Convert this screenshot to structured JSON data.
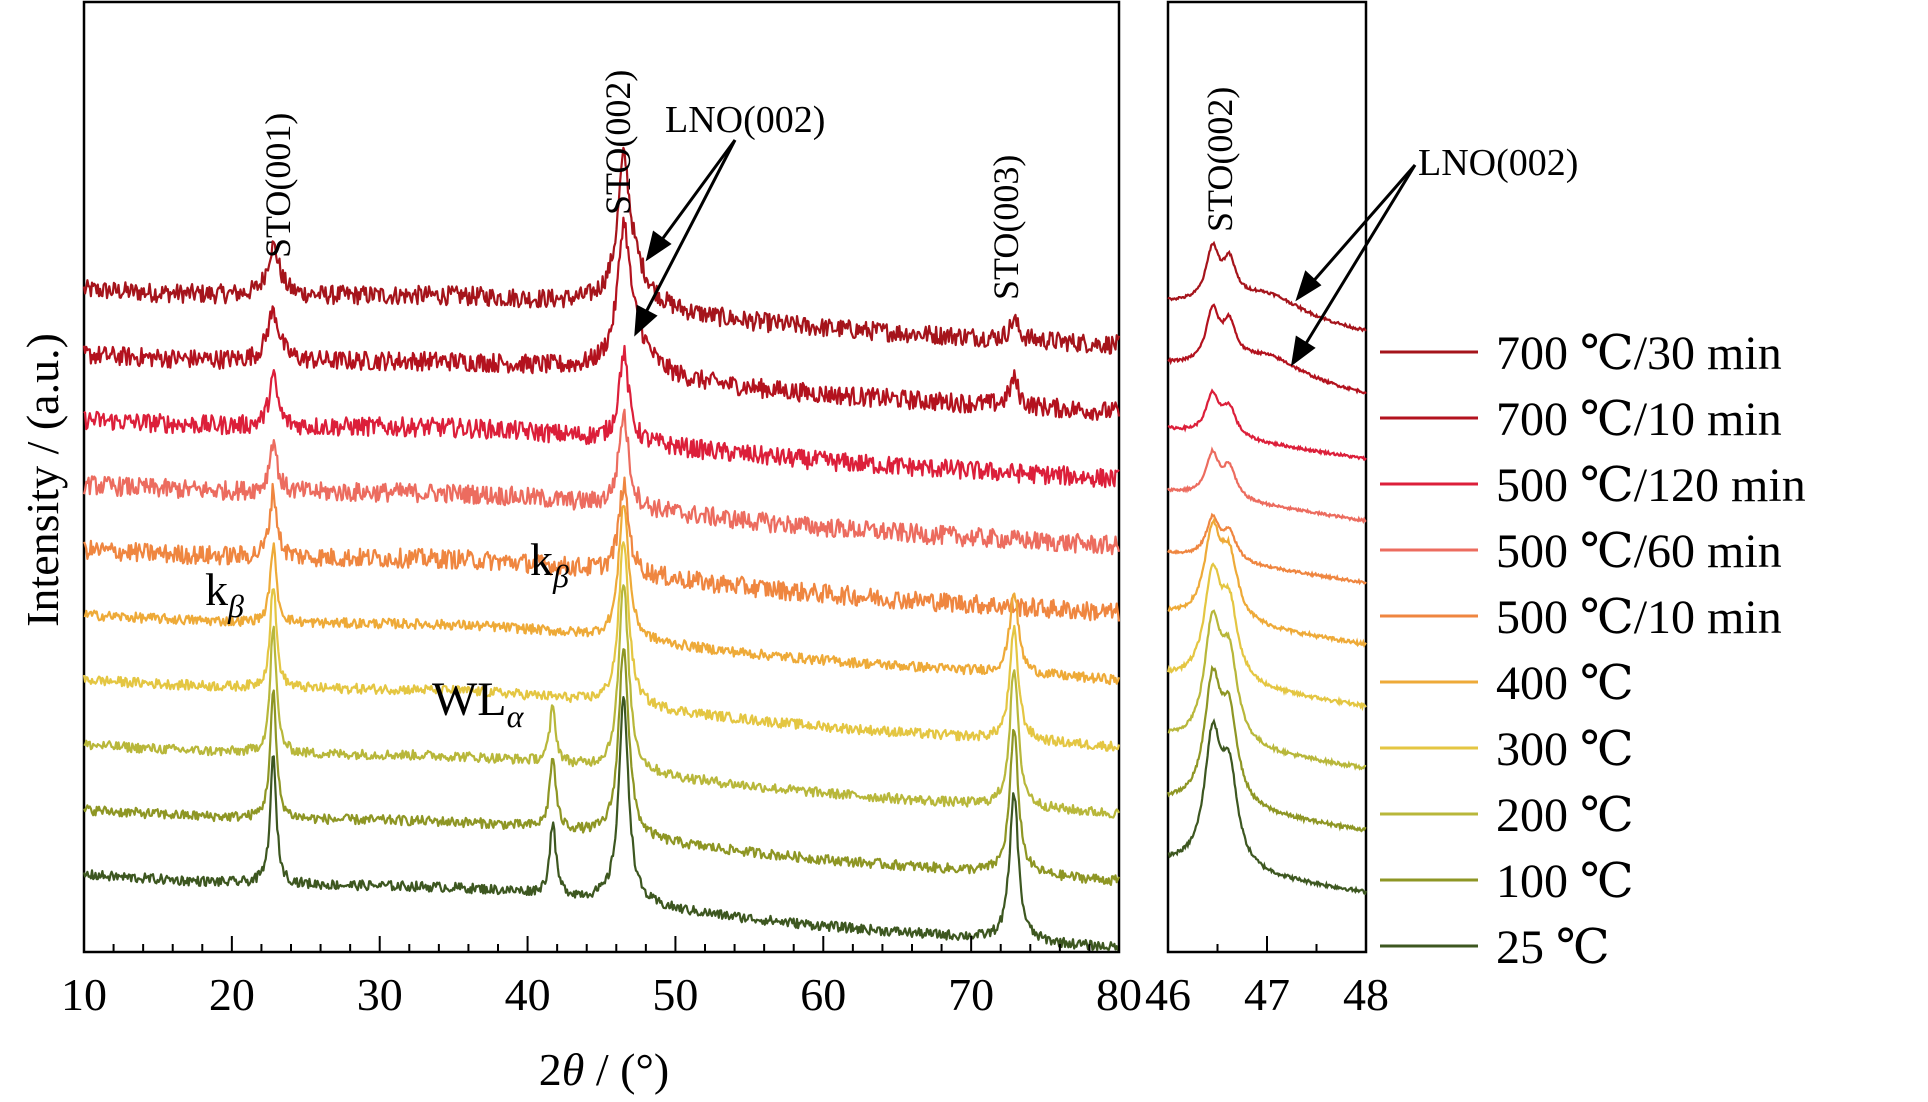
{
  "chart_data": [
    {
      "type": "line",
      "panel": "main",
      "xlabel_parts": {
        "prefix": "2",
        "symbol": "θ",
        "suffix": " / (°)"
      },
      "ylabel": "Intensity / (a.u.)",
      "xlim": [
        10,
        80
      ],
      "xticks": [
        10,
        20,
        30,
        40,
        50,
        60,
        70,
        80
      ],
      "xtick_labels": [
        "10",
        "20",
        "30",
        "40",
        "50",
        "60",
        "70",
        "80"
      ],
      "yticks_shown": false,
      "grid": false,
      "offset_traces": true,
      "series": [
        {
          "name": "700 ℃/30 min",
          "color": "#a5141b",
          "baseline": 0.0,
          "peaks": [
            {
              "x": 22.8,
              "h": 0.9,
              "w": 0.5
            },
            {
              "x": 46.5,
              "h": 2.1,
              "w": 0.45
            },
            {
              "x": 47.0,
              "h": 0.8,
              "w": 1.3
            },
            {
              "x": 72.9,
              "h": 0.35,
              "w": 0.35
            }
          ]
        },
        {
          "name": "700 ℃/10 min",
          "color": "#b3121e",
          "baseline": 1.0,
          "peaks": [
            {
              "x": 22.8,
              "h": 0.9,
              "w": 0.5
            },
            {
              "x": 46.5,
              "h": 2.1,
              "w": 0.45
            },
            {
              "x": 47.0,
              "h": 0.8,
              "w": 1.3
            },
            {
              "x": 72.9,
              "h": 0.5,
              "w": 0.35
            }
          ]
        },
        {
          "name": "500 ℃/120 min",
          "color": "#dc1f3a",
          "baseline": 2.0,
          "peaks": [
            {
              "x": 22.8,
              "h": 0.9,
              "w": 0.35
            },
            {
              "x": 46.5,
              "h": 1.6,
              "w": 0.4
            }
          ]
        },
        {
          "name": "500 ℃/60 min",
          "color": "#ec6c5f",
          "baseline": 3.0,
          "peaks": [
            {
              "x": 22.8,
              "h": 0.95,
              "w": 0.3
            },
            {
              "x": 46.5,
              "h": 1.7,
              "w": 0.4
            }
          ]
        },
        {
          "name": "500 ℃/10 min",
          "color": "#ef8640",
          "baseline": 4.0,
          "peaks": [
            {
              "x": 22.8,
              "h": 1.2,
              "w": 0.3
            },
            {
              "x": 46.5,
              "h": 1.6,
              "w": 0.4
            }
          ]
        },
        {
          "name": "400 ℃",
          "color": "#eeaa38",
          "baseline": 5.0,
          "peaks": [
            {
              "x": 22.8,
              "h": 1.4,
              "w": 0.25
            },
            {
              "x": 46.5,
              "h": 2.5,
              "w": 0.4
            },
            {
              "x": 72.9,
              "h": 1.5,
              "w": 0.35
            }
          ]
        },
        {
          "name": "300 ℃",
          "color": "#e4c642",
          "baseline": 6.0,
          "peaks": [
            {
              "x": 22.8,
              "h": 1.9,
              "w": 0.25
            },
            {
              "x": 46.5,
              "h": 3.0,
              "w": 0.4
            },
            {
              "x": 72.9,
              "h": 2.0,
              "w": 0.35
            }
          ]
        },
        {
          "name": "200 ℃",
          "color": "#b8b73a",
          "baseline": 7.0,
          "peaks": [
            {
              "x": 22.8,
              "h": 2.3,
              "w": 0.25
            },
            {
              "x": 41.7,
              "h": 1.0,
              "w": 0.25
            },
            {
              "x": 46.5,
              "h": 3.4,
              "w": 0.4
            },
            {
              "x": 72.9,
              "h": 2.5,
              "w": 0.35
            }
          ]
        },
        {
          "name": "100 ℃",
          "color": "#8e9624",
          "baseline": 8.0,
          "peaks": [
            {
              "x": 22.8,
              "h": 2.3,
              "w": 0.25
            },
            {
              "x": 41.7,
              "h": 1.3,
              "w": 0.25
            },
            {
              "x": 46.5,
              "h": 3.5,
              "w": 0.4
            },
            {
              "x": 72.9,
              "h": 2.6,
              "w": 0.35
            }
          ]
        },
        {
          "name": "25 ℃",
          "color": "#3d5720",
          "baseline": 9.0,
          "peaks": [
            {
              "x": 22.8,
              "h": 2.3,
              "w": 0.25
            },
            {
              "x": 41.7,
              "h": 1.3,
              "w": 0.25
            },
            {
              "x": 46.5,
              "h": 3.7,
              "w": 0.4
            },
            {
              "x": 72.9,
              "h": 2.7,
              "w": 0.35
            }
          ]
        }
      ],
      "annotations": [
        {
          "text": "STO(001)",
          "rotated": true
        },
        {
          "text": "STO(002)",
          "rotated": true
        },
        {
          "text": "STO(003)",
          "rotated": true
        },
        {
          "text": "LNO(002)",
          "rotated": false,
          "arrows": 2
        },
        {
          "text_main": "k",
          "text_sub": "β"
        },
        {
          "text_main": "k",
          "text_sub": "β"
        },
        {
          "text_main": "WL",
          "text_sub": "α"
        }
      ]
    },
    {
      "type": "line",
      "panel": "inset",
      "xlim": [
        46,
        48
      ],
      "xticks": [
        46,
        47,
        48
      ],
      "xtick_labels": [
        "46",
        "47",
        "48"
      ],
      "grid": false,
      "annotations": [
        {
          "text": "STO(002)",
          "rotated": true
        },
        {
          "text": "LNO(002)",
          "rotated": false,
          "arrows": 2
        }
      ]
    }
  ],
  "legend": {
    "placement": "right",
    "entries": [
      "700 ℃/30 min",
      "700 ℃/10 min",
      "500 ℃/120 min",
      "500 ℃/60 min",
      "500 ℃/10 min",
      "400 ℃",
      "300 ℃",
      "200 ℃",
      "100 ℃",
      "25 ℃"
    ]
  }
}
